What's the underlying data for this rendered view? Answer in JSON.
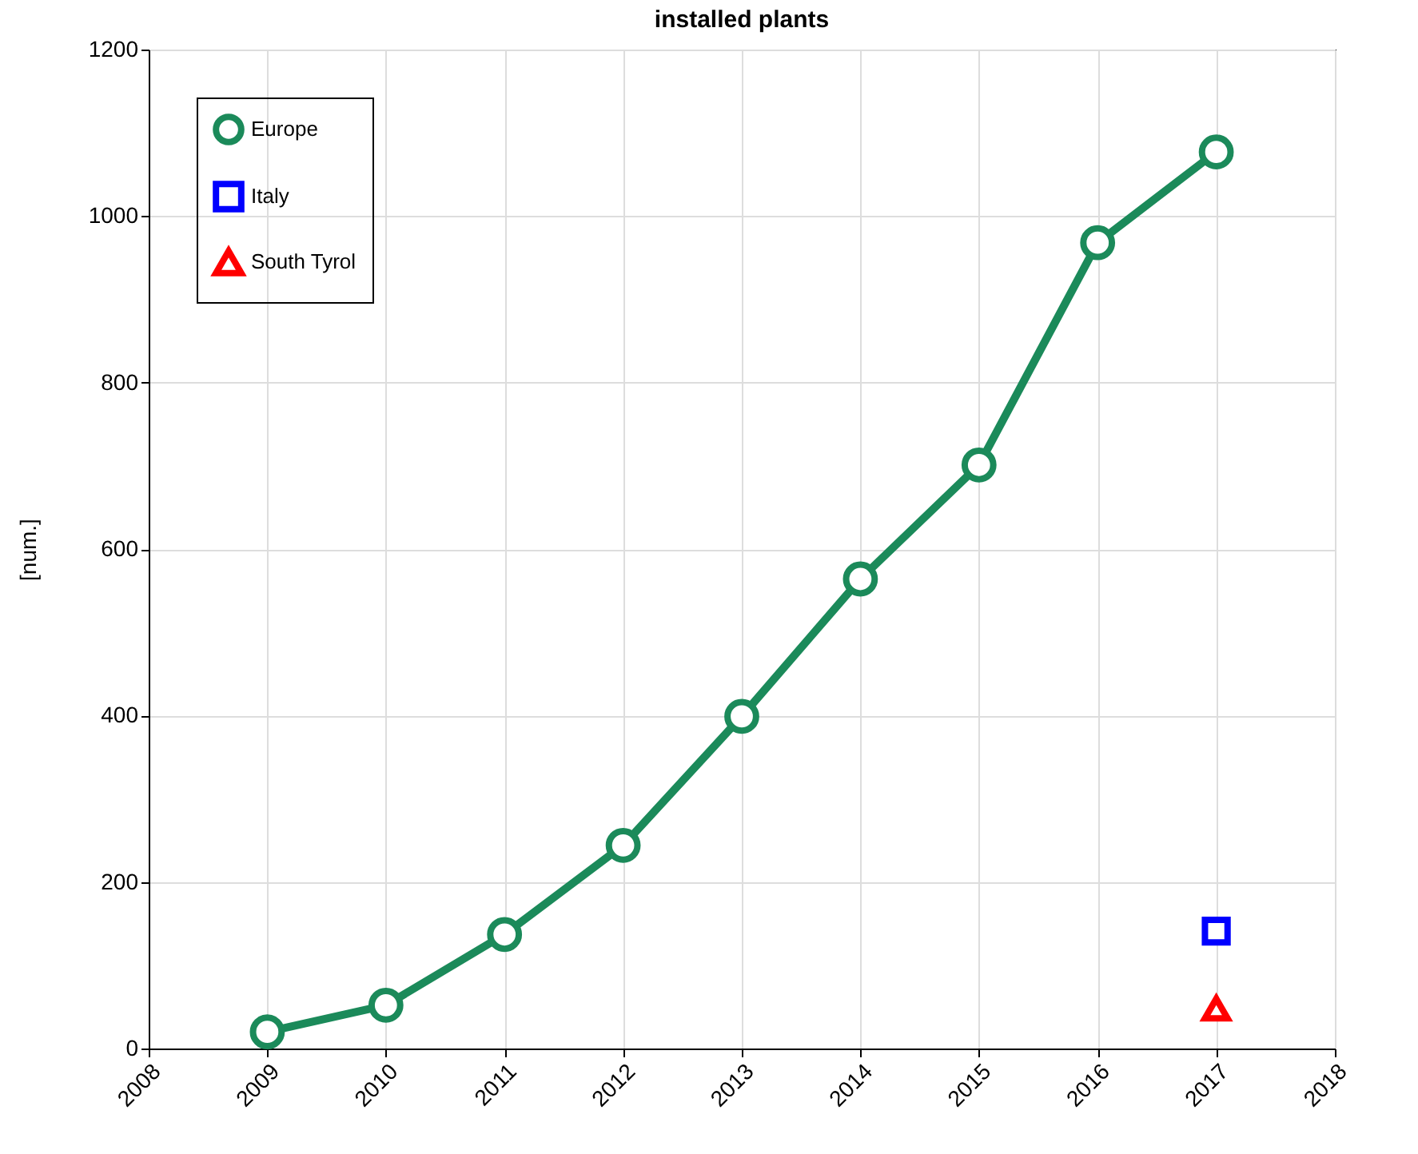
{
  "chart_data": {
    "type": "line",
    "title": "installed plants",
    "ylabel": "[num.]",
    "xlim": [
      2008,
      2018
    ],
    "xticks": [
      2008,
      2009,
      2010,
      2011,
      2012,
      2013,
      2014,
      2015,
      2016,
      2017,
      2018
    ],
    "ylim": [
      0,
      1200
    ],
    "yticks": [
      0,
      200,
      400,
      600,
      800,
      1000,
      1200
    ],
    "grid": true,
    "legend": "top left",
    "series": [
      {
        "name": "Europe",
        "type": "line",
        "marker": "circle",
        "color": "#1b8a5a",
        "x": [
          2009,
          2010,
          2011,
          2012,
          2013,
          2014,
          2015,
          2016,
          2017
        ],
        "values": [
          20,
          52,
          137,
          244,
          399,
          564,
          701,
          968,
          1077
        ]
      },
      {
        "name": "Italy",
        "type": "scatter",
        "marker": "square",
        "color": "#0000ff",
        "x": [
          2017
        ],
        "values": [
          141
        ]
      },
      {
        "name": "South Tyrol",
        "type": "scatter",
        "marker": "triangle",
        "color": "#ff0000",
        "x": [
          2017
        ],
        "values": [
          48
        ]
      }
    ]
  }
}
